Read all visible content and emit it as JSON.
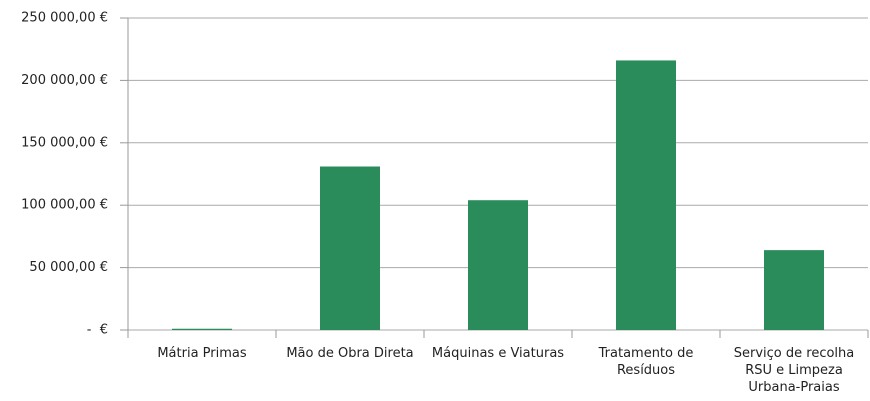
{
  "chart_data": {
    "type": "bar",
    "categories": [
      "Mátria Primas",
      "Mão de Obra Direta",
      "Máquinas e Viaturas",
      "Tratamento de Resíduos",
      "Serviço de recolha RSU e Limpeza Urbana-Praias"
    ],
    "values": [
      1000,
      131000,
      104000,
      216000,
      64000
    ],
    "color": "#2a8c5a",
    "ylim": [
      0,
      250000
    ],
    "yticks": [
      {
        "value": 0,
        "label": "-  €"
      },
      {
        "value": 50000,
        "label": "50 000,00 €"
      },
      {
        "value": 100000,
        "label": "100 000,00 €"
      },
      {
        "value": 150000,
        "label": "150 000,00 €"
      },
      {
        "value": 200000,
        "label": "200 000,00 €"
      },
      {
        "value": 250000,
        "label": "250 000,00 €"
      }
    ],
    "grid": true
  }
}
